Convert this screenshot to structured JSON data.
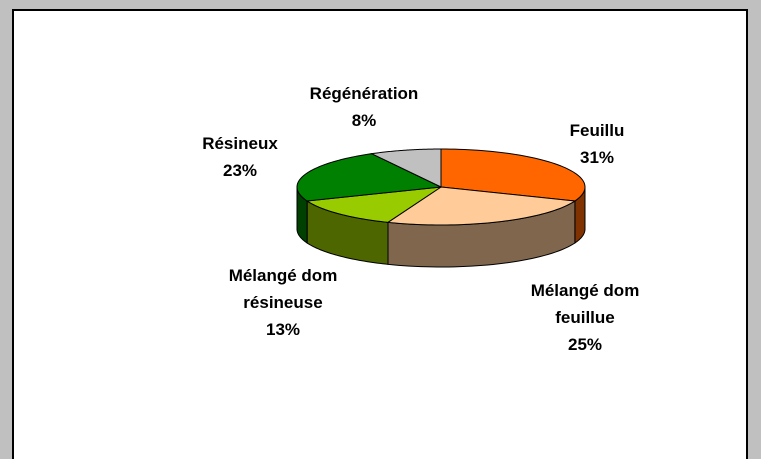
{
  "chart_data": {
    "type": "pie3d",
    "categories": [
      "Feuillu",
      "Mélangé dom feuillue",
      "Mélangé dom résineuse",
      "Résineux",
      "Régénération"
    ],
    "values": [
      31,
      25,
      13,
      23,
      8
    ],
    "value_labels": [
      "31%",
      "25%",
      "13%",
      "23%",
      "8%"
    ],
    "colors": [
      "#ff6600",
      "#ffcc99",
      "#99cc00",
      "#008000",
      "#c0c0c0"
    ]
  }
}
